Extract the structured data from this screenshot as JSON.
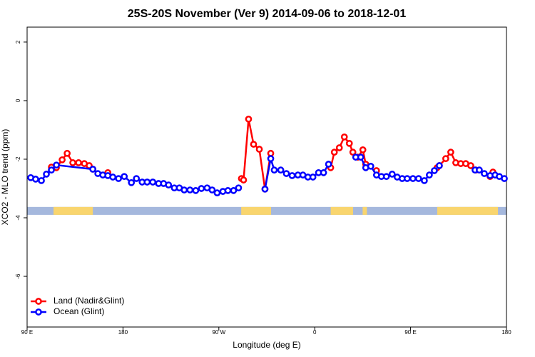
{
  "chart_data": {
    "type": "line",
    "title": "25S-20S November (Ver 9)   2014-09-06 to 2018-12-01",
    "x_label": "Longitude (deg E)",
    "y_label": "XCO2 - MLO trend (ppm)",
    "xlim": [
      90,
      540
    ],
    "ylim": [
      -7.73,
      2.51
    ],
    "xticks": [
      {
        "value": 90,
        "label": "90 E"
      },
      {
        "value": 180,
        "label": "180"
      },
      {
        "value": 270,
        "label": "90 W"
      },
      {
        "value": 360,
        "label": "0"
      },
      {
        "value": 450,
        "label": "90 E"
      },
      {
        "value": 540,
        "label": "180"
      }
    ],
    "yticks": [
      2,
      0,
      -2,
      -4,
      -6
    ],
    "legend": "bottom-left",
    "mask": {
      "ylim": [
        -3.63,
        -3.9
      ],
      "ocean_color": "#a5b8dd",
      "land_color": "#f9d56e",
      "land_spans": [
        [
          114.8,
          151.7
        ],
        [
          291,
          319
        ],
        [
          375,
          396
        ],
        [
          405,
          409
        ],
        [
          475,
          532
        ]
      ]
    },
    "series": [
      {
        "name": "Land (Nadir&Glint)",
        "color": "#ff0000",
        "x": [
          112.8,
          117.5,
          122.9,
          127.6,
          132.9,
          138.3,
          143.7,
          148.3,
          151.7,
          null,
          165.8,
          null,
          291.2,
          293.2,
          297.9,
          302.6,
          308.0,
          313.3,
          318.7,
          null,
          375.0,
          378.4,
          383.1,
          387.8,
          392.5,
          395.8,
          400.5,
          405.2,
          407.9,
          null,
          418.0,
          null,
          474.9,
          477.0,
          483.0,
          487.7,
          492.4,
          497.1,
          501.8,
          506.5,
          511.2,
          null,
          524.6,
          527.3
        ],
        "values": [
          -2.27,
          -2.29,
          -2.02,
          -1.8,
          -2.12,
          -2.12,
          -2.15,
          -2.22,
          -2.34,
          null,
          -2.46,
          null,
          -2.66,
          -2.71,
          -0.63,
          -1.49,
          -1.66,
          -3.02,
          -1.8,
          null,
          -2.29,
          -1.76,
          -1.61,
          -1.24,
          -1.46,
          -1.76,
          -1.93,
          -1.68,
          -2.17,
          null,
          -2.39,
          null,
          -2.29,
          -2.22,
          -1.98,
          -1.76,
          -2.12,
          -2.15,
          -2.15,
          -2.22,
          -2.37,
          null,
          -2.59,
          -2.44
        ]
      },
      {
        "name": "Ocean (Glint)",
        "color": "#0000ff",
        "x": [
          93.4,
          98.0,
          103.4,
          108.1,
          112.8,
          117.5,
          151.7,
          156.4,
          161.1,
          165.8,
          170.5,
          175.8,
          181.2,
          187.9,
          192.6,
          198.0,
          202.7,
          208.0,
          213.4,
          218.1,
          222.8,
          228.2,
          232.9,
          237.5,
          242.9,
          248.3,
          253.6,
          259.0,
          263.7,
          268.4,
          273.8,
          278.5,
          283.8,
          288.5,
          null,
          313.3,
          318.7,
          322.0,
          328.1,
          333.4,
          338.8,
          344.2,
          348.9,
          353.6,
          358.3,
          363.6,
          368.3,
          373.0,
          null,
          398.5,
          403.2,
          407.9,
          412.6,
          418.0,
          422.6,
          427.3,
          432.7,
          437.4,
          442.1,
          446.8,
          452.2,
          457.5,
          462.9,
          467.6,
          472.3,
          477.0,
          null,
          510.5,
          514.5,
          519.2,
          524.6,
          529.3,
          533.3,
          538.0
        ],
        "values": [
          -2.63,
          -2.68,
          -2.73,
          -2.51,
          -2.37,
          -2.2,
          -2.34,
          -2.49,
          -2.54,
          -2.56,
          -2.61,
          -2.66,
          -2.59,
          -2.8,
          -2.66,
          -2.78,
          -2.78,
          -2.78,
          -2.83,
          -2.83,
          -2.88,
          -2.98,
          -2.98,
          -3.05,
          -3.05,
          -3.07,
          -3.0,
          -2.98,
          -3.05,
          -3.15,
          -3.1,
          -3.07,
          -3.07,
          -2.98,
          null,
          -3.02,
          -1.98,
          -2.37,
          -2.37,
          -2.49,
          -2.56,
          -2.54,
          -2.54,
          -2.61,
          -2.61,
          -2.46,
          -2.46,
          -2.17,
          null,
          -1.93,
          -1.93,
          -2.29,
          -2.24,
          -2.54,
          -2.59,
          -2.59,
          -2.51,
          -2.61,
          -2.66,
          -2.66,
          -2.66,
          -2.66,
          -2.73,
          -2.54,
          -2.39,
          -2.22,
          null,
          -2.37,
          -2.37,
          -2.49,
          -2.56,
          -2.54,
          -2.59,
          -2.66
        ]
      }
    ]
  }
}
